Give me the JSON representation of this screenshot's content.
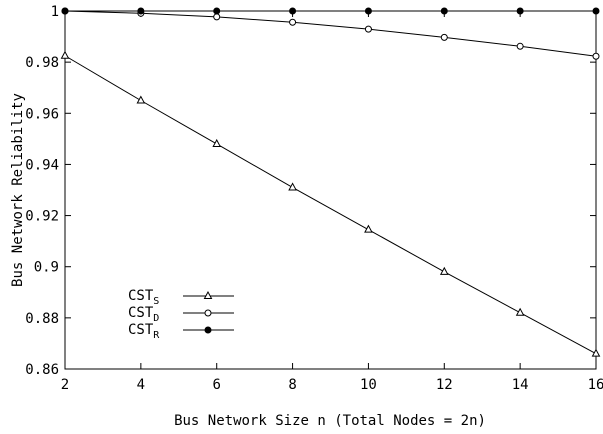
{
  "chart_data": {
    "type": "line",
    "title": "",
    "xlabel": "Bus Network Size n (Total Nodes = 2n)",
    "ylabel": "Bus Network Reliability",
    "xlim": [
      2,
      16
    ],
    "ylim": [
      0.86,
      1.0
    ],
    "x_ticks": [
      2,
      4,
      6,
      8,
      10,
      12,
      14,
      16
    ],
    "y_ticks": [
      0.86,
      0.88,
      0.9,
      0.92,
      0.94,
      0.96,
      0.98,
      1
    ],
    "x_tick_labels": [
      "2",
      "4",
      "6",
      "8",
      "10",
      "12",
      "14",
      "16"
    ],
    "y_tick_labels": [
      "0.86",
      "0.88",
      "0.9",
      "0.92",
      "0.94",
      "0.96",
      "0.98",
      "1"
    ],
    "grid": false,
    "legend_position": "bottom-left",
    "x": [
      2,
      4,
      6,
      8,
      10,
      12,
      14,
      16
    ],
    "series": [
      {
        "name": "CST",
        "subscript": "S",
        "marker": "triangle",
        "values": [
          0.9825,
          0.965,
          0.948,
          0.931,
          0.9145,
          0.898,
          0.882,
          0.866
        ]
      },
      {
        "name": "CST",
        "subscript": "D",
        "marker": "open-circle",
        "values": [
          1.0,
          0.9991,
          0.9977,
          0.9956,
          0.9929,
          0.9897,
          0.9862,
          0.9823
        ]
      },
      {
        "name": "CST",
        "subscript": "R",
        "marker": "filled-circle",
        "values": [
          1.0,
          1.0,
          1.0,
          1.0,
          1.0,
          1.0,
          1.0,
          1.0
        ]
      }
    ]
  }
}
